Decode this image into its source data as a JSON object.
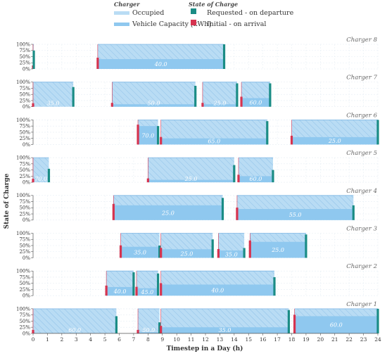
{
  "chart_data": {
    "type": "bar",
    "xlabel": "Timestep in a Day (h)",
    "ylabel": "State of Charge",
    "xlim": [
      0,
      24
    ],
    "xticks": [
      0,
      1,
      2,
      3,
      4,
      5,
      6,
      7,
      8,
      9,
      10,
      11,
      12,
      13,
      14,
      15,
      16,
      17,
      18,
      19,
      20,
      21,
      22,
      23,
      24
    ],
    "yticks": [
      "0%",
      "25%",
      "50%",
      "75%",
      "100%"
    ],
    "grid": true,
    "legend": {
      "placement": "top-center",
      "groups": [
        {
          "title": "Charger",
          "items": [
            {
              "label": "Occupied",
              "key": "occupied",
              "color": "#b9dcf4"
            },
            {
              "label": "Vehicle Capacity [kWh]",
              "key": "capacity",
              "color": "#8fc8ef"
            }
          ]
        },
        {
          "title": "State of Charge",
          "items": [
            {
              "label": "Requested - on departure",
              "key": "requested",
              "color": "#1a8c85"
            },
            {
              "label": "Initial - on arrival",
              "key": "initial",
              "color": "#d6334f"
            }
          ]
        }
      ]
    },
    "colors": {
      "occupied": "#b9dcf4",
      "capacity": "#8fc8ef",
      "requested": "#1a8c85",
      "initial": "#d6334f",
      "label": "#ffffff"
    },
    "chargers": [
      {
        "name": "Charger 8",
        "sessions": [
          {
            "start": 0.0,
            "end": 0.05,
            "arrival_soc": 0.0,
            "departure_soc": 0.75,
            "capacity": 40.0,
            "label": ""
          },
          {
            "start": 4.5,
            "end": 13.3,
            "arrival_soc": 0.4,
            "departure_soc": 1.0,
            "capacity": 40.0,
            "label": "40.0"
          }
        ]
      },
      {
        "name": "Charger 7",
        "sessions": [
          {
            "start": 0.0,
            "end": 2.8,
            "arrival_soc": 0.0,
            "departure_soc": 0.8,
            "capacity": 35.0,
            "label": "35.0"
          },
          {
            "start": 5.5,
            "end": 11.3,
            "arrival_soc": 0.1,
            "departure_soc": 0.85,
            "capacity": 50.0,
            "label": "50.0"
          },
          {
            "start": 11.8,
            "end": 14.2,
            "arrival_soc": 0.1,
            "departure_soc": 0.95,
            "capacity": 25.0,
            "label": "25.0"
          },
          {
            "start": 14.5,
            "end": 16.5,
            "arrival_soc": 0.35,
            "departure_soc": 0.95,
            "capacity": 60.0,
            "label": "60.0"
          }
        ]
      },
      {
        "name": "Charger 6",
        "sessions": [
          {
            "start": 7.3,
            "end": 8.7,
            "arrival_soc": 0.75,
            "departure_soc": 0.75,
            "capacity": 70.0,
            "label": "70.0"
          },
          {
            "start": 8.9,
            "end": 16.3,
            "arrival_soc": 0.25,
            "departure_soc": 0.95,
            "capacity": 65.0,
            "label": "65.0"
          },
          {
            "start": 18.0,
            "end": 24.0,
            "arrival_soc": 0.3,
            "departure_soc": 1.0,
            "capacity": 25.0,
            "label": "25.0"
          }
        ]
      },
      {
        "name": "Charger 5",
        "sessions": [
          {
            "start": 0.0,
            "end": 1.1,
            "arrival_soc": 0.0,
            "departure_soc": 0.55,
            "capacity": 70.0,
            "label": "70.0"
          },
          {
            "start": 8.0,
            "end": 14.0,
            "arrival_soc": 0.1,
            "departure_soc": 0.7,
            "capacity": 25.0,
            "label": "25.0"
          },
          {
            "start": 14.3,
            "end": 16.7,
            "arrival_soc": 0.25,
            "departure_soc": 0.5,
            "capacity": 60.0,
            "label": "60.0"
          }
        ]
      },
      {
        "name": "Charger 4",
        "sessions": [
          {
            "start": 5.6,
            "end": 13.2,
            "arrival_soc": 0.6,
            "departure_soc": 0.9,
            "capacity": 25.0,
            "label": "25.0"
          },
          {
            "start": 14.2,
            "end": 22.3,
            "arrival_soc": 0.45,
            "departure_soc": 0.6,
            "capacity": 55.0,
            "label": "55.0"
          }
        ]
      },
      {
        "name": "Charger 3",
        "sessions": [
          {
            "start": 6.1,
            "end": 8.8,
            "arrival_soc": 0.45,
            "departure_soc": 0.5,
            "capacity": 35.0,
            "label": "35.0"
          },
          {
            "start": 8.9,
            "end": 12.5,
            "arrival_soc": 0.35,
            "departure_soc": 0.75,
            "capacity": 25.0,
            "label": "25.0"
          },
          {
            "start": 12.9,
            "end": 14.7,
            "arrival_soc": 0.3,
            "departure_soc": 0.4,
            "capacity": 35.0,
            "label": "35.0"
          },
          {
            "start": 15.1,
            "end": 19.0,
            "arrival_soc": 0.65,
            "departure_soc": 0.95,
            "capacity": 25.0,
            "label": "25.0"
          }
        ]
      },
      {
        "name": "Charger 2",
        "sessions": [
          {
            "start": 5.1,
            "end": 7.0,
            "arrival_soc": 0.35,
            "departure_soc": 0.95,
            "capacity": 40.0,
            "label": "40.0"
          },
          {
            "start": 7.2,
            "end": 8.7,
            "arrival_soc": 0.3,
            "departure_soc": 0.9,
            "capacity": 45.0,
            "label": "45.0"
          },
          {
            "start": 8.9,
            "end": 16.8,
            "arrival_soc": 0.45,
            "departure_soc": 0.75,
            "capacity": 40.0,
            "label": "40.0"
          }
        ]
      },
      {
        "name": "Charger 1",
        "sessions": [
          {
            "start": 0.0,
            "end": 5.8,
            "arrival_soc": 0.0,
            "departure_soc": 0.7,
            "capacity": 60.0,
            "label": "60.0"
          },
          {
            "start": 7.3,
            "end": 8.8,
            "arrival_soc": 0.05,
            "departure_soc": 0.45,
            "capacity": 50.0,
            "label": "50.0"
          },
          {
            "start": 8.9,
            "end": 17.8,
            "arrival_soc": 0.25,
            "departure_soc": 0.95,
            "capacity": 35.0,
            "label": "35.0"
          },
          {
            "start": 18.2,
            "end": 24.0,
            "arrival_soc": 0.7,
            "departure_soc": 1.0,
            "capacity": 60.0,
            "label": "60.0"
          }
        ]
      }
    ]
  }
}
